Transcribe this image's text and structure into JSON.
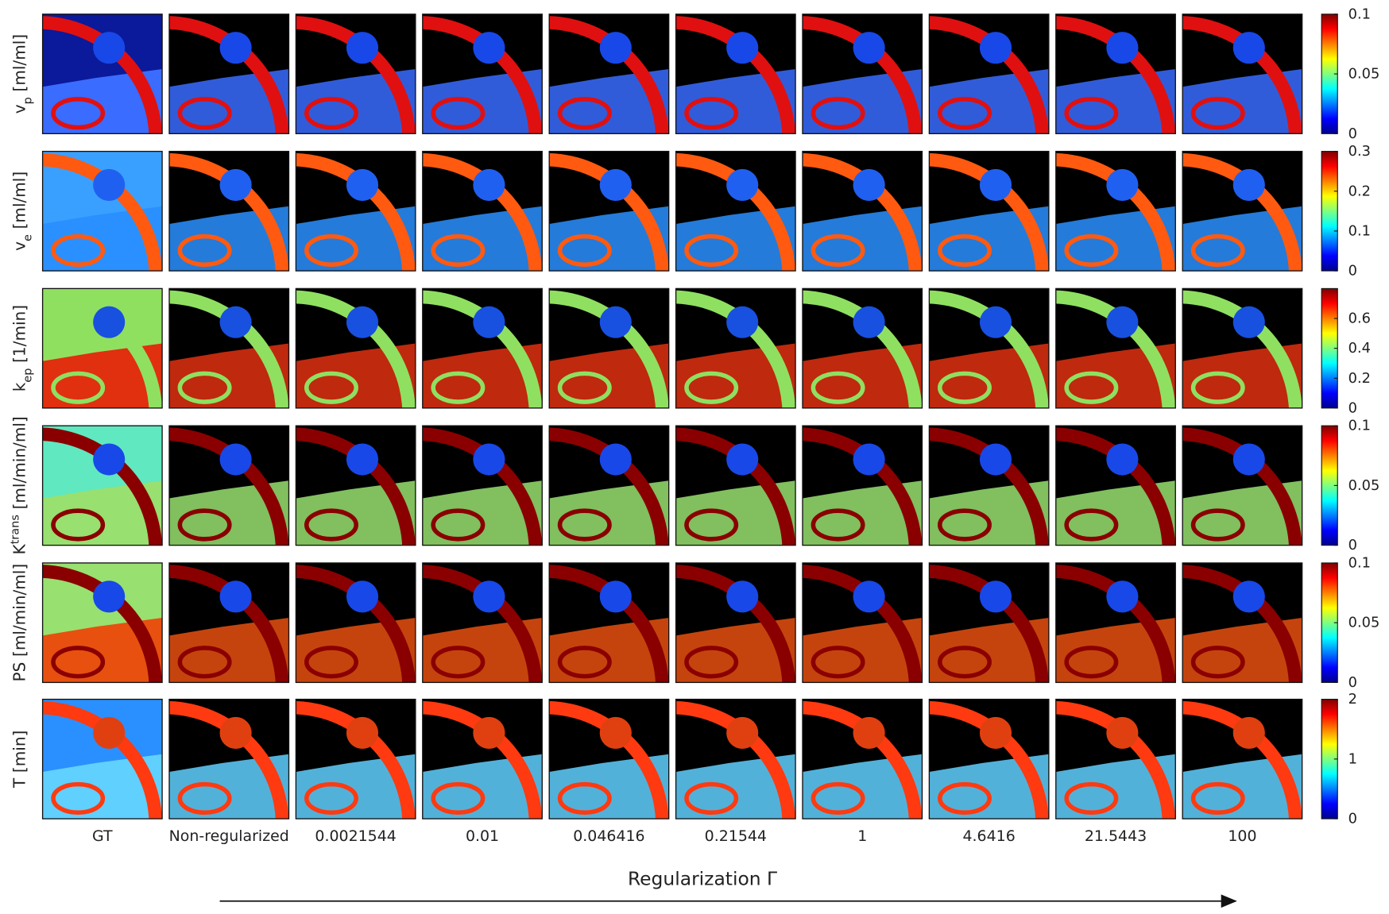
{
  "rows": [
    {
      "label": {
        "symbol": "v",
        "sub": "p",
        "unit": "[ml/ml]"
      },
      "colorbar": {
        "range": [
          0,
          0.1
        ],
        "ticks": [
          0,
          0.05,
          0.1
        ]
      }
    },
    {
      "label": {
        "symbol": "v",
        "sub": "e",
        "unit": "[ml/ml]"
      },
      "colorbar": {
        "range": [
          0,
          0.3
        ],
        "ticks": [
          0,
          0.1,
          0.2,
          0.3
        ]
      }
    },
    {
      "label": {
        "symbol": "k",
        "sub": "ep",
        "unit": "[1/min]"
      },
      "colorbar": {
        "range": [
          0,
          0.8
        ],
        "ticks": [
          0,
          0.2,
          0.4,
          0.6
        ]
      }
    },
    {
      "label": {
        "symbol": "K",
        "sup": "trans",
        "unit": "[ml/min/ml]"
      },
      "colorbar": {
        "range": [
          0,
          0.1
        ],
        "ticks": [
          0,
          0.05,
          0.1
        ]
      }
    },
    {
      "label": {
        "symbol": "PS",
        "unit": "[ml/min/ml]"
      },
      "colorbar": {
        "range": [
          0,
          0.1
        ],
        "ticks": [
          0,
          0.05,
          0.1
        ]
      }
    },
    {
      "label": {
        "symbol": "T",
        "unit": "[min]"
      },
      "colorbar": {
        "range": [
          0,
          2
        ],
        "ticks": [
          0,
          1,
          2
        ]
      }
    }
  ],
  "columns": [
    "GT",
    "Non-regularized",
    "0.0021544",
    "0.01",
    "0.046416",
    "0.21544",
    "1",
    "4.6416",
    "21.5443",
    "100"
  ],
  "x_label": "Regularization Γ"
}
